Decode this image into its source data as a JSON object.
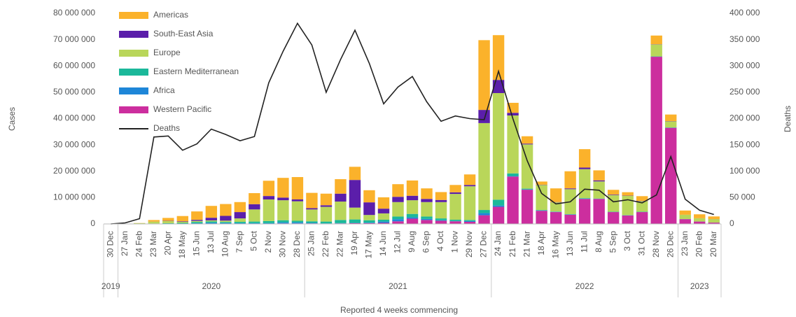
{
  "chart_data": {
    "type": "bar",
    "stacked": true,
    "x_title": "Reported 4 weeks commencing",
    "y_title": "Cases",
    "y2_title": "Deaths",
    "categories": [
      "30 Dec",
      "27 Jan",
      "24 Feb",
      "23 Mar",
      "20 Apr",
      "18 May",
      "15 Jun",
      "13 Jul",
      "10 Aug",
      "7 Sep",
      "5 Oct",
      "2 Nov",
      "30 Nov",
      "28 Dec",
      "25 Jan",
      "22 Feb",
      "22 Mar",
      "19 Apr",
      "17 May",
      "14 Jun",
      "12 Jul",
      "9 Aug",
      "6 Sep",
      "4 Oct",
      "1 Nov",
      "29 Nov",
      "27 Dec",
      "24 Jan",
      "21 Feb",
      "21 Mar",
      "18 Apr",
      "16 May",
      "13 Jun",
      "11 Jul",
      "8 Aug",
      "5 Sep",
      "3 Oct",
      "31 Oct",
      "28 Nov",
      "26 Dec",
      "23 Jan",
      "20 Feb",
      "20 Mar"
    ],
    "year_groups": [
      {
        "label": "2019",
        "span": 1
      },
      {
        "label": "2020",
        "span": 13
      },
      {
        "label": "2021",
        "span": 13
      },
      {
        "label": "2022",
        "span": 13
      },
      {
        "label": "2023",
        "span": 3
      }
    ],
    "ylim": [
      0,
      80000000
    ],
    "yticks": [
      0,
      {
        "value": 10000000,
        "label": "10 000 000"
      },
      {
        "value": 20000000,
        "label": "20 000 000"
      },
      {
        "value": 30000000,
        "label": "30 000 000"
      },
      {
        "value": 40000000,
        "label": "40 000 000"
      },
      {
        "value": 50000000,
        "label": "50 000 000"
      },
      {
        "value": 60000000,
        "label": "60 000 000"
      },
      {
        "value": 70000000,
        "label": "70 000 000"
      },
      {
        "value": 80000000,
        "label": "80 000 000"
      }
    ],
    "y2lim": [
      0,
      400000
    ],
    "y2ticks": [
      0,
      {
        "value": 50000,
        "label": "50 000"
      },
      {
        "value": 100000,
        "label": "100 000"
      },
      {
        "value": 150000,
        "label": "150 000"
      },
      {
        "value": 200000,
        "label": "200 000"
      },
      {
        "value": 250000,
        "label": "250 000"
      },
      {
        "value": 300000,
        "label": "300 000"
      },
      {
        "value": 350000,
        "label": "350 000"
      },
      {
        "value": 400000,
        "label": "400 000"
      }
    ],
    "legend": "upper left",
    "series": [
      {
        "name": "Americas",
        "color": "#fbb22b",
        "values": [
          0,
          0,
          50000,
          600000,
          1100000,
          2000000,
          3200000,
          4500000,
          4500000,
          3800000,
          4200000,
          5800000,
          7500000,
          8500000,
          5800000,
          4400000,
          5500000,
          5000000,
          4600000,
          4300000,
          4800000,
          5800000,
          4000000,
          3000000,
          2800000,
          4000000,
          26500000,
          17000000,
          3800000,
          2800000,
          1200000,
          5200000,
          6500000,
          7000000,
          3800000,
          1800000,
          1300000,
          1800000,
          3300000,
          2500000,
          1600000,
          1500000,
          1000000
        ]
      },
      {
        "name": "South-East Asia",
        "color": "#5b1eaa",
        "values": [
          0,
          0,
          0,
          20000,
          100000,
          200000,
          400000,
          1000000,
          1800000,
          2400000,
          2000000,
          1300000,
          1000000,
          700000,
          500000,
          600000,
          3000000,
          10500000,
          4800000,
          1800000,
          2000000,
          1700000,
          1200000,
          800000,
          600000,
          500000,
          5000000,
          5000000,
          1000000,
          300000,
          100000,
          100000,
          300000,
          600000,
          400000,
          200000,
          100000,
          100000,
          100000,
          100000,
          20000,
          20000,
          20000
        ]
      },
      {
        "name": "Europe",
        "color": "#b9d65a",
        "values": [
          0,
          0,
          200000,
          700000,
          800000,
          400000,
          400000,
          400000,
          500000,
          1300000,
          4600000,
          8200000,
          7600000,
          7400000,
          4500000,
          5600000,
          7000000,
          4500000,
          2000000,
          2400000,
          5500000,
          5200000,
          5500000,
          6200000,
          9800000,
          12800000,
          33000000,
          40500000,
          22000000,
          16800000,
          9500000,
          3500000,
          9500000,
          11000000,
          6500000,
          6300000,
          7300000,
          4000000,
          4500000,
          2300000,
          1600000,
          1200000,
          1300000
        ]
      },
      {
        "name": "Eastern Mediterranean",
        "color": "#1bb89a",
        "values": [
          0,
          0,
          50000,
          100000,
          200000,
          300000,
          500000,
          500000,
          400000,
          500000,
          600000,
          800000,
          800000,
          600000,
          600000,
          700000,
          1200000,
          1300000,
          900000,
          700000,
          1000000,
          1300000,
          900000,
          700000,
          500000,
          400000,
          1200000,
          2200000,
          1000000,
          300000,
          200000,
          100000,
          100000,
          200000,
          100000,
          100000,
          100000,
          100000,
          100000,
          100000,
          50000,
          30000,
          20000
        ]
      },
      {
        "name": "Africa",
        "color": "#1e86d8",
        "values": [
          0,
          0,
          0,
          10000,
          40000,
          100000,
          200000,
          400000,
          300000,
          200000,
          200000,
          200000,
          400000,
          400000,
          200000,
          100000,
          100000,
          100000,
          200000,
          500000,
          800000,
          500000,
          400000,
          200000,
          100000,
          300000,
          800000,
          500000,
          200000,
          100000,
          100000,
          100000,
          100000,
          100000,
          50000,
          50000,
          50000,
          50000,
          50000,
          50000,
          20000,
          10000,
          10000
        ]
      },
      {
        "name": "Western Pacific",
        "color": "#cc2e9e",
        "values": [
          10000,
          80000,
          40000,
          50000,
          40000,
          0,
          50000,
          50000,
          60000,
          100000,
          100000,
          100000,
          200000,
          200000,
          200000,
          100000,
          200000,
          300000,
          300000,
          400000,
          1000000,
          2000000,
          1500000,
          1200000,
          1000000,
          800000,
          3300000,
          6500000,
          18000000,
          13000000,
          5000000,
          4500000,
          3500000,
          9500000,
          9500000,
          4500000,
          3200000,
          4500000,
          63500000,
          36500000,
          1800000,
          900000,
          500000
        ]
      },
      {
        "name": "Deaths",
        "type": "line",
        "axis": "y2",
        "color": "#222222",
        "values": [
          0,
          2000,
          10000,
          165000,
          167000,
          140000,
          152000,
          180000,
          170000,
          158000,
          166000,
          268000,
          328000,
          381000,
          340000,
          250000,
          312000,
          368000,
          305000,
          228000,
          260000,
          280000,
          232000,
          195000,
          205000,
          200000,
          198000,
          290000,
          200000,
          120000,
          58000,
          38000,
          42000,
          66000,
          64000,
          42000,
          46000,
          40000,
          55000,
          128000,
          47000,
          26000,
          18000
        ]
      }
    ]
  }
}
